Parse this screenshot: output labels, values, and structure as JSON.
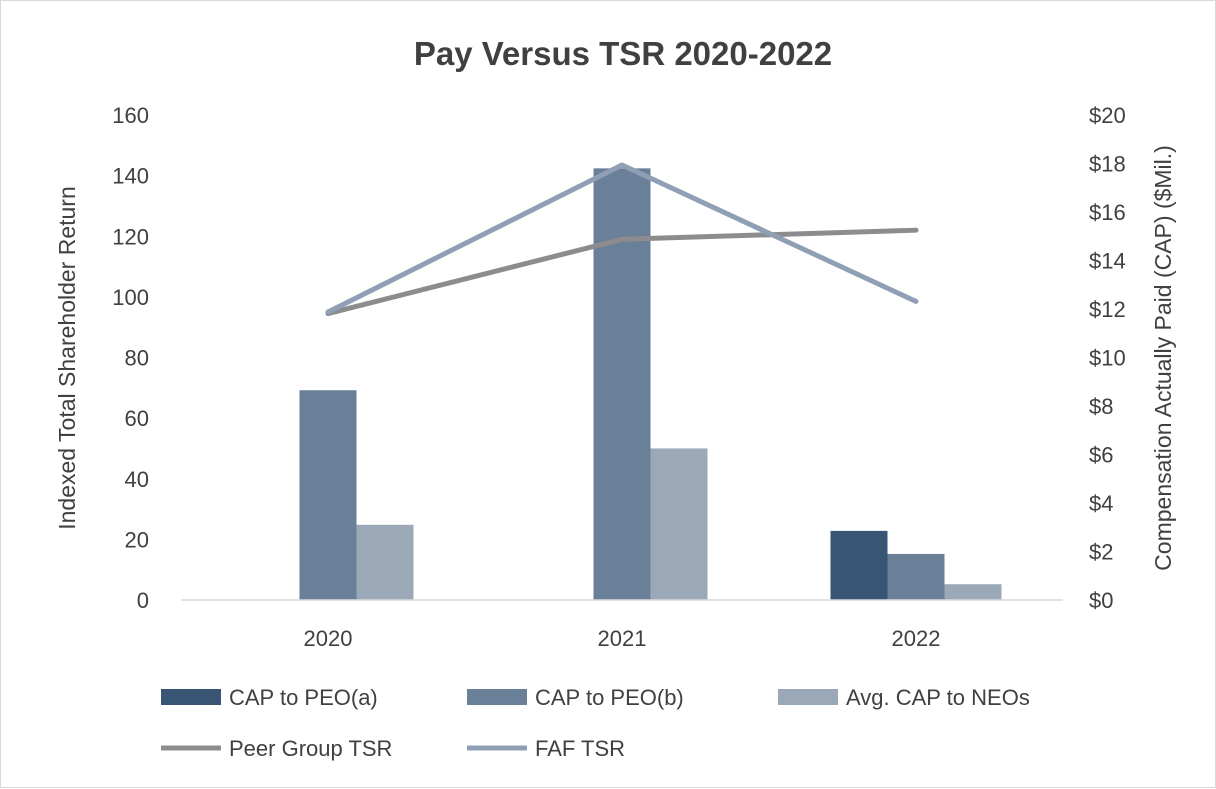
{
  "chart_data": {
    "type": "bar",
    "title": "Pay Versus TSR 2020-2022",
    "categories": [
      "2020",
      "2021",
      "2022"
    ],
    "y_left": {
      "label": "Indexed Total Shareholder Return",
      "lim": [
        0,
        160
      ],
      "ticks": [
        "0",
        "20",
        "40",
        "60",
        "80",
        "100",
        "120",
        "140",
        "160"
      ]
    },
    "y_right": {
      "label": "Compensation Actually Paid (CAP) ($Mil.)",
      "lim": [
        0,
        20
      ],
      "ticks": [
        "$0",
        "$2",
        "$4",
        "$6",
        "$8",
        "$10",
        "$12",
        "$14",
        "$16",
        "$18",
        "$20"
      ]
    },
    "bar_series": [
      {
        "name": "CAP to PEO(a)",
        "axis": "right",
        "color": "#385573",
        "values": [
          null,
          null,
          2.85
        ]
      },
      {
        "name": "CAP to PEO(b)",
        "axis": "right",
        "color": "#6a7f98",
        "values": [
          8.65,
          17.8,
          1.9
        ]
      },
      {
        "name": "Avg. CAP to NEOs",
        "axis": "right",
        "color": "#9aa8b8",
        "values": [
          3.1,
          6.25,
          0.65
        ]
      }
    ],
    "line_series": [
      {
        "name": "Peer Group TSR",
        "axis": "left",
        "color": "#8c8c8e",
        "values": [
          94.5,
          119,
          122
        ]
      },
      {
        "name": "FAF TSR",
        "axis": "left",
        "color": "#8fa0b4",
        "values": [
          95,
          143.5,
          98.5
        ]
      }
    ],
    "gridlines": false,
    "legend_position": "bottom"
  }
}
